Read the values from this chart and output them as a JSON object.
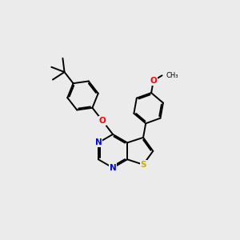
{
  "bg_color": "#ebebeb",
  "bond_color": "#000000",
  "N_color": "#0000ff",
  "S_color": "#ccaa00",
  "O_color": "#ff0000",
  "lw": 1.4,
  "dbo": 0.055,
  "r6": 0.7,
  "xlim": [
    0.5,
    10.5
  ],
  "ylim": [
    0.5,
    10.5
  ]
}
